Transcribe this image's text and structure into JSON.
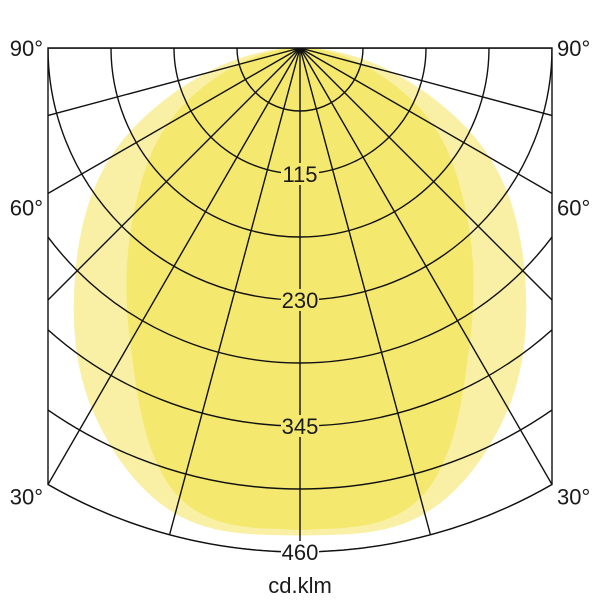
{
  "chart_data": {
    "type": "polar",
    "unit_label": "cd.klm",
    "radial_tick_labels": [
      "115",
      "230",
      "345",
      "460"
    ],
    "radial_gridline_step": 57.5,
    "rmax": 460,
    "angle_labels_left": [
      "90°",
      "60°",
      "30°"
    ],
    "angle_labels_right": [
      "90°",
      "60°",
      "30°"
    ],
    "angle_label_values": [
      90,
      60,
      30
    ],
    "angular_grid_step_deg": 15,
    "angle_range": [
      -90,
      90
    ],
    "series": [
      {
        "color": "#f9f0a6",
        "angles": [
          0,
          15,
          30,
          45,
          60,
          75,
          90
        ],
        "values": [
          445,
          440,
          380,
          290,
          200,
          90,
          10
        ]
      },
      {
        "color": "#f4e86e",
        "angles": [
          0,
          15,
          30,
          45,
          60,
          75,
          90
        ],
        "values": [
          440,
          425,
          310,
          215,
          140,
          60,
          5
        ]
      }
    ],
    "grid_color": "#111111",
    "symmetric": true
  }
}
